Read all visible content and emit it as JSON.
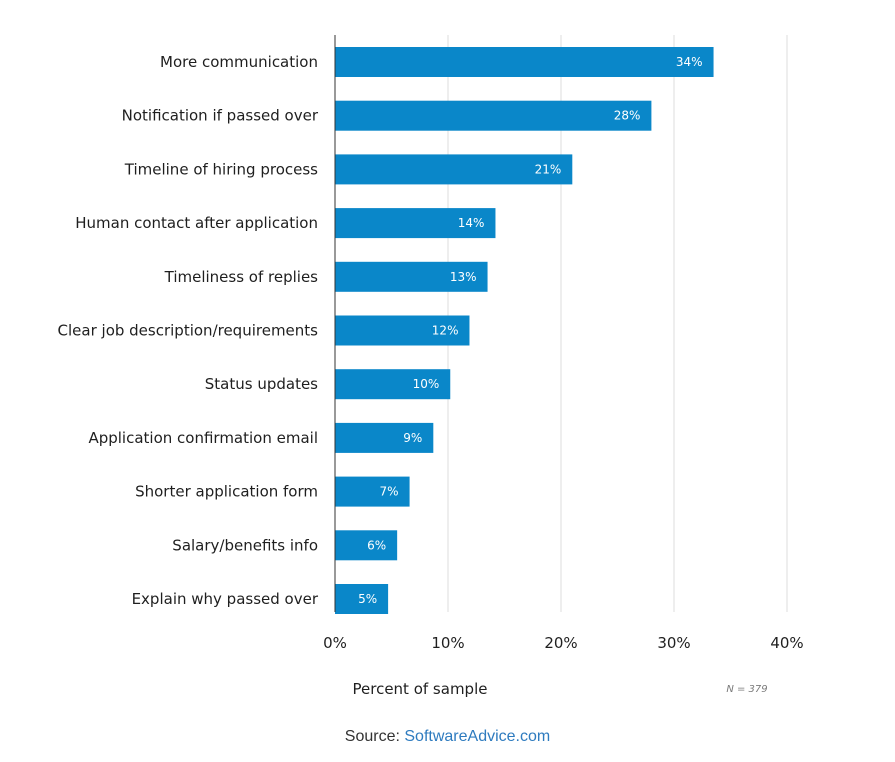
{
  "chart_data": {
    "type": "bar",
    "orientation": "horizontal",
    "categories": [
      "More communication",
      "Notification if passed over",
      "Timeline of hiring process",
      "Human contact after application",
      "Timeliness of replies",
      "Clear job description/requirements",
      "Status updates",
      "Application confirmation email",
      "Shorter application form",
      "Salary/benefits info",
      "Explain why passed over"
    ],
    "values": [
      33.5,
      28,
      21,
      14.2,
      13.5,
      11.9,
      10.2,
      8.7,
      6.6,
      5.5,
      4.7
    ],
    "data_labels": [
      "34%",
      "28%",
      "21%",
      "14%",
      "13%",
      "12%",
      "10%",
      "9%",
      "7%",
      "6%",
      "5%"
    ],
    "xlim": [
      0,
      40
    ],
    "xticks": [
      0,
      10,
      20,
      30,
      40
    ],
    "xtick_labels": [
      "0%",
      "10%",
      "20%",
      "30%",
      "40%"
    ],
    "xlabel": "Percent of sample",
    "note": "N = 379",
    "grid": true,
    "bar_color": "#0a87c9",
    "grid_color": "#dddddd"
  },
  "footer": {
    "source_prefix": "Source: ",
    "source_link": "SoftwareAdvice.com",
    "link_color": "#2e7bbf"
  }
}
